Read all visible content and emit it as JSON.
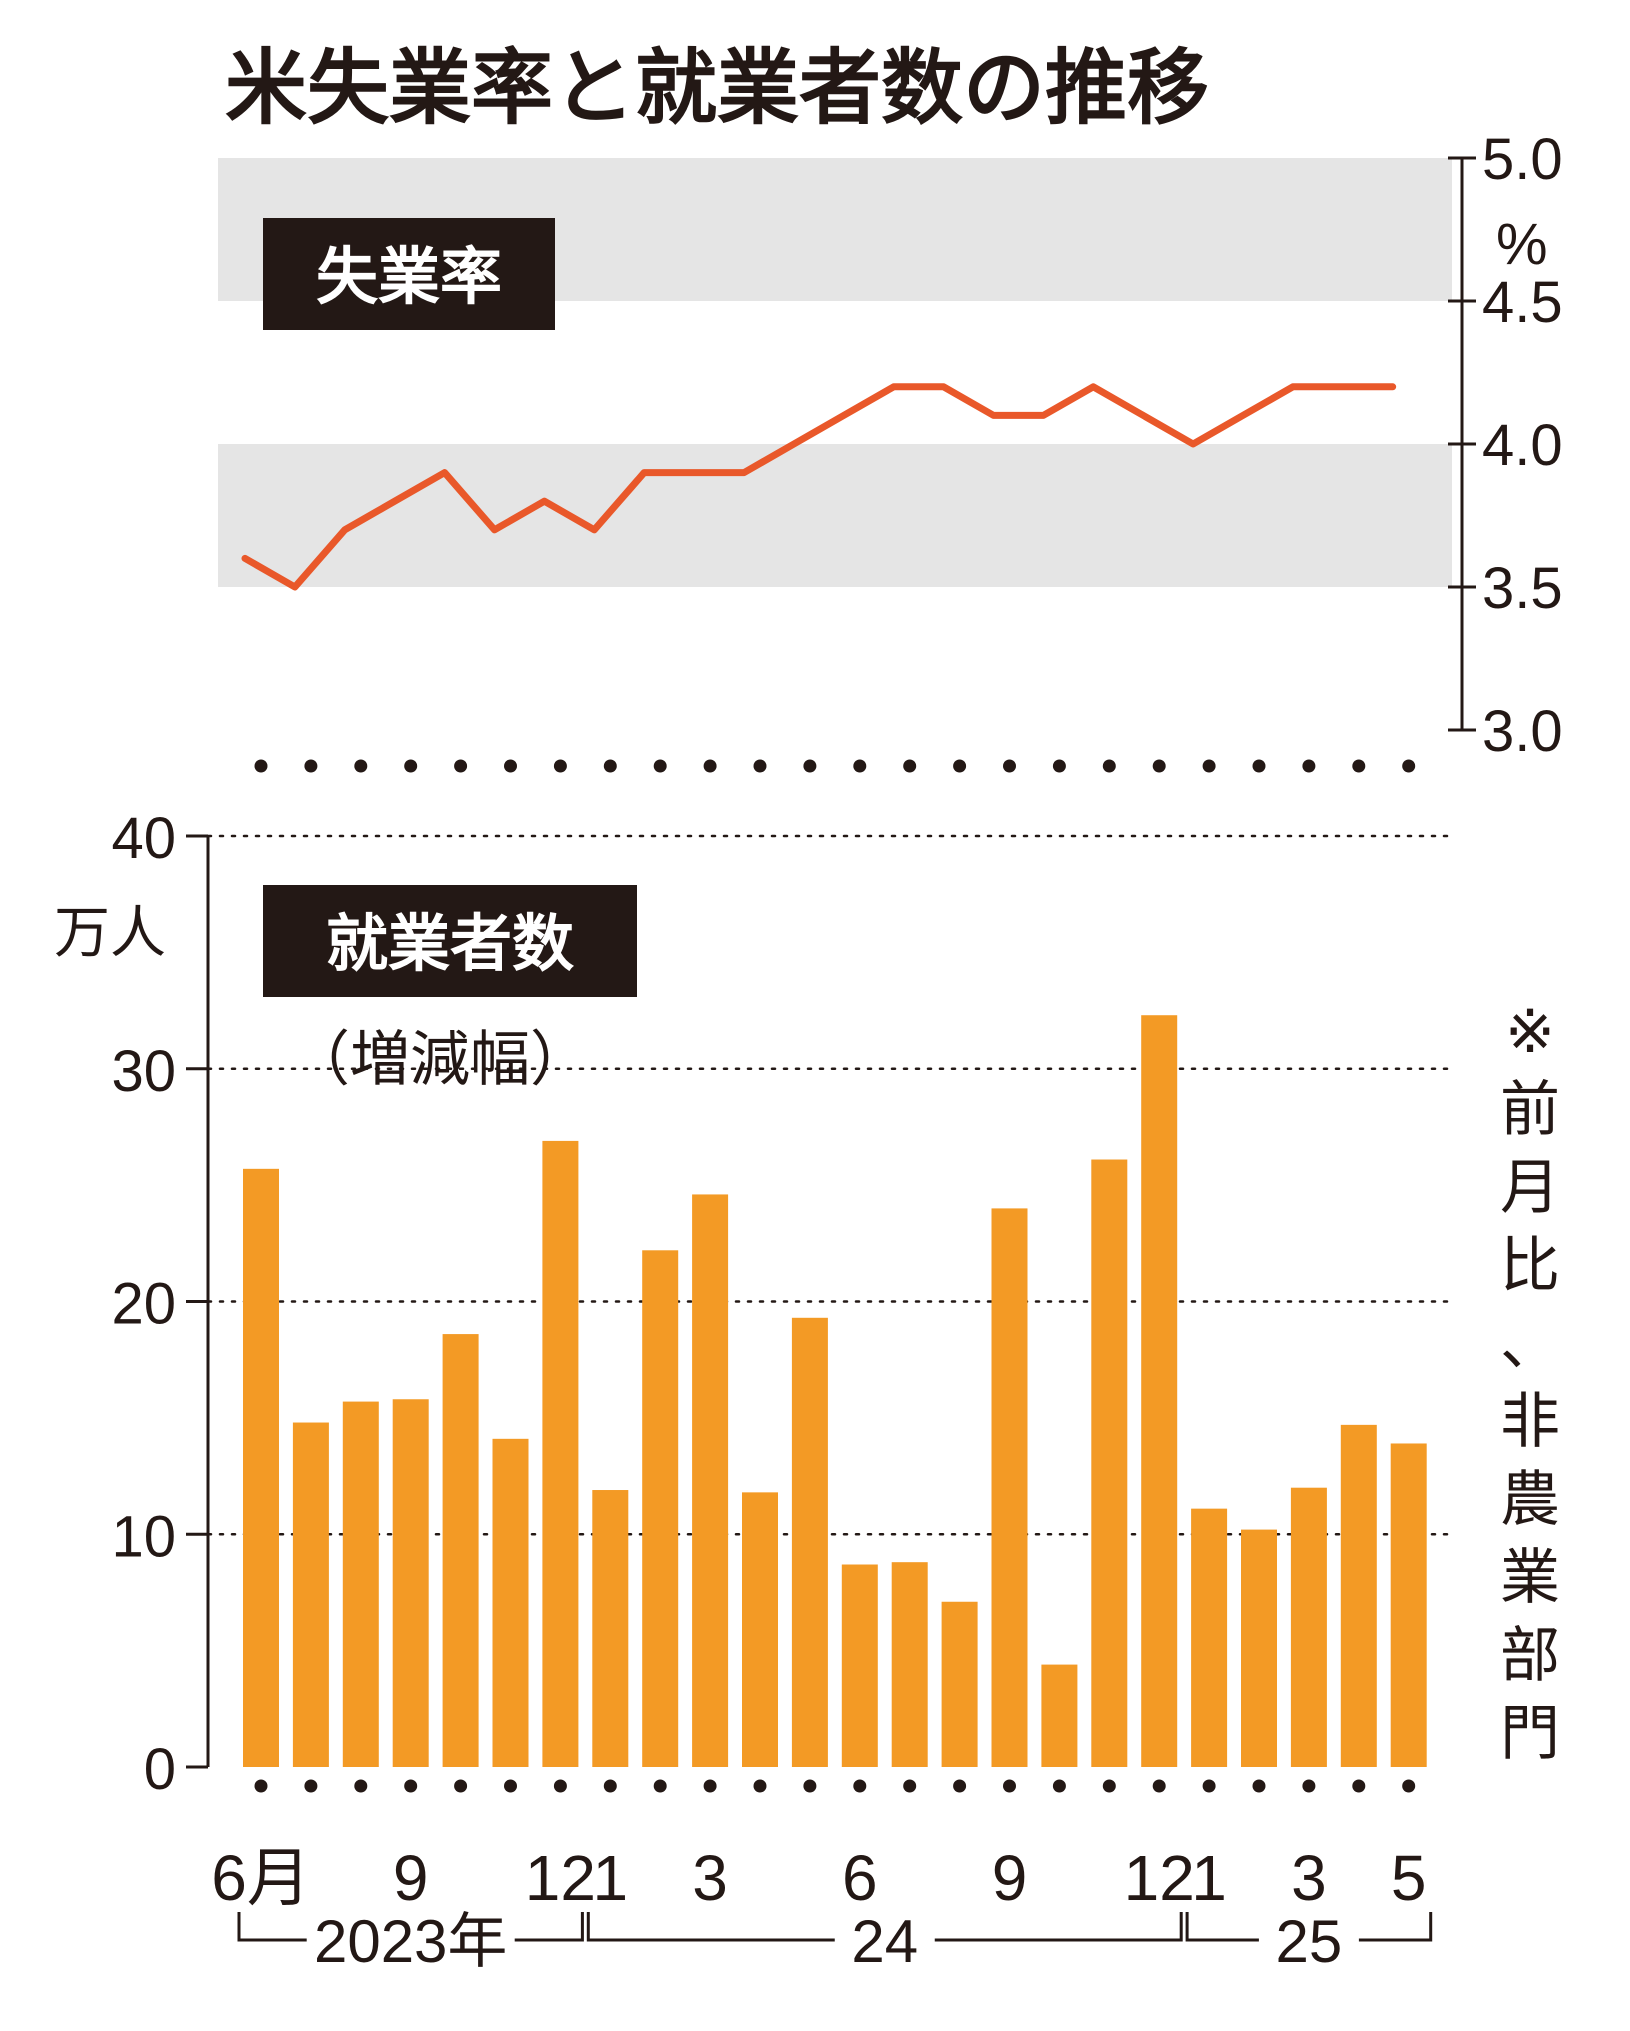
{
  "title": "米失業率と就業者数の推移",
  "colors": {
    "line": "#e9582a",
    "bar": "#f39a25",
    "band": "#e5e5e5",
    "label_bg": "#231815",
    "text": "#231815"
  },
  "chart_data": [
    {
      "type": "line",
      "label": "失業率",
      "y_unit": "%",
      "ylim": [
        3.0,
        5.0
      ],
      "y_ticks": [
        "5.0",
        "4.5",
        "4.0",
        "3.5",
        "3.0"
      ],
      "x": [
        "2023-06",
        "2023-07",
        "2023-08",
        "2023-09",
        "2023-10",
        "2023-11",
        "2023-12",
        "2024-01",
        "2024-02",
        "2024-03",
        "2024-04",
        "2024-05",
        "2024-06",
        "2024-07",
        "2024-08",
        "2024-09",
        "2024-10",
        "2024-11",
        "2024-12",
        "2025-01",
        "2025-02",
        "2025-03",
        "2025-04",
        "2025-05"
      ],
      "values": [
        3.6,
        3.5,
        3.7,
        3.8,
        3.9,
        3.7,
        3.8,
        3.7,
        3.9,
        3.9,
        3.9,
        4.0,
        4.1,
        4.2,
        4.2,
        4.1,
        4.1,
        4.2,
        4.1,
        4.0,
        4.1,
        4.2,
        4.2,
        4.2
      ]
    },
    {
      "type": "bar",
      "label": "就業者数",
      "sublabel": "（増減幅）",
      "y_unit": "万人",
      "ylim": [
        0,
        40
      ],
      "y_ticks": [
        "40",
        "30",
        "20",
        "10",
        "0"
      ],
      "note": "※前月比、非農業部門",
      "categories": [
        "2023-06",
        "2023-07",
        "2023-08",
        "2023-09",
        "2023-10",
        "2023-11",
        "2023-12",
        "2024-01",
        "2024-02",
        "2024-03",
        "2024-04",
        "2024-05",
        "2024-06",
        "2024-07",
        "2024-08",
        "2024-09",
        "2024-10",
        "2024-11",
        "2024-12",
        "2025-01",
        "2025-02",
        "2025-03",
        "2025-04",
        "2025-05"
      ],
      "values": [
        25.7,
        14.8,
        15.7,
        15.8,
        18.6,
        14.1,
        26.9,
        11.9,
        22.2,
        24.6,
        11.8,
        19.3,
        8.7,
        8.8,
        7.1,
        24.0,
        4.4,
        26.1,
        32.3,
        11.1,
        10.2,
        12.0,
        14.7,
        13.9
      ],
      "x_tick_labels": [
        {
          "index": 0,
          "label": "6月"
        },
        {
          "index": 3,
          "label": "9"
        },
        {
          "index": 6,
          "label": "12"
        },
        {
          "index": 7,
          "label": "1"
        },
        {
          "index": 9,
          "label": "3"
        },
        {
          "index": 12,
          "label": "6"
        },
        {
          "index": 15,
          "label": "9"
        },
        {
          "index": 18,
          "label": "12"
        },
        {
          "index": 19,
          "label": "1"
        },
        {
          "index": 21,
          "label": "3"
        },
        {
          "index": 23,
          "label": "5"
        }
      ],
      "year_groups": [
        {
          "label": "2023年",
          "from": 0,
          "to": 6
        },
        {
          "label": "24",
          "from": 7,
          "to": 18
        },
        {
          "label": "25",
          "from": 19,
          "to": 23
        }
      ]
    }
  ]
}
